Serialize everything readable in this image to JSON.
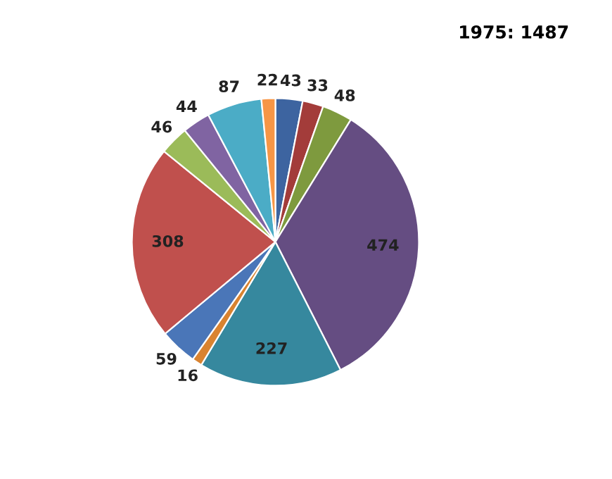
{
  "chart_data": {
    "type": "pie",
    "title": "1975: 1487",
    "categories": [
      null,
      null,
      null,
      null,
      null,
      null,
      null,
      null,
      null,
      null,
      null,
      null
    ],
    "values": [
      43,
      33,
      48,
      474,
      227,
      16,
      59,
      308,
      46,
      44,
      87,
      22
    ],
    "colors": [
      "#3d64a0",
      "#a33c3a",
      "#7e9a3e",
      "#654d82",
      "#36889e",
      "#d98330",
      "#4a76b8",
      "#c0504d",
      "#9bbb59",
      "#8064a2",
      "#4bacc6",
      "#f79646"
    ],
    "data_labels": true
  }
}
